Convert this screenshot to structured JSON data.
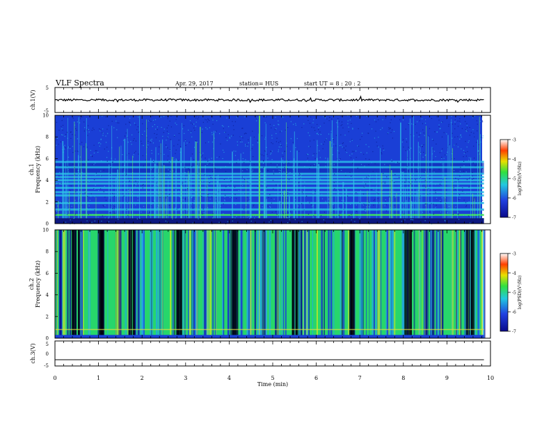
{
  "header": {
    "title": "VLF Spectra",
    "date": "Apr. 29, 2017",
    "station": "station= HUS",
    "start": "start  UT  =   8  : 20 : 2"
  },
  "chart_data": [
    {
      "type": "line",
      "panel": "ch1-waveform",
      "ylabel": "ch.1(V)",
      "ylim": [
        -5,
        5
      ],
      "yticks": [
        "5",
        "-5"
      ],
      "baseline": 0,
      "color": "#000000"
    },
    {
      "type": "heatmap",
      "panel": "ch1-spectrogram",
      "ylabel_top": "ch.1",
      "ylabel": "Frequency  (kHz)",
      "ylim": [
        0,
        10
      ],
      "yticks": [
        "0",
        "2",
        "4",
        "6",
        "8",
        "10"
      ],
      "background_color": "#1a3fd6",
      "horizontal_bands_khz": [
        0.4,
        0.8,
        1.3,
        1.9,
        2.6,
        2.9,
        3.3,
        3.7,
        4.0,
        4.3,
        4.6,
        5.2,
        5.7
      ],
      "colorbar": {
        "label": "log(PSD)(V²/Hz)",
        "range": [
          -7,
          -3
        ],
        "ticks": [
          "-3",
          "-4",
          "-5",
          "-6",
          "-7"
        ]
      }
    },
    {
      "type": "heatmap",
      "panel": "ch2-spectrogram",
      "ylabel_top": "ch.2",
      "ylabel": "Frequency  (kHz)",
      "ylim": [
        0,
        10
      ],
      "yticks": [
        "0",
        "2",
        "4",
        "6",
        "8",
        "10"
      ],
      "background_color": "#27d66b",
      "dark_bands_min": [
        0.45,
        1.05,
        1.75,
        2.8,
        4.1,
        5.5,
        6.8,
        8.1,
        9.5
      ],
      "colorbar": {
        "label": "log(PSD)(V²/Hz)",
        "range": [
          -7,
          -3
        ],
        "ticks": [
          "-3",
          "-4",
          "-5",
          "-6",
          "-7"
        ]
      }
    },
    {
      "type": "line",
      "panel": "ch3-waveform",
      "ylabel": "ch.3(V)",
      "ylim": [
        -5,
        5
      ],
      "yticks": [
        "5",
        "0",
        "-5"
      ],
      "baseline": -2.5,
      "color": "#000000"
    }
  ],
  "xaxis": {
    "label": "Time  (min)",
    "range": [
      0,
      10
    ],
    "ticks": [
      "0",
      "1",
      "2",
      "3",
      "4",
      "5",
      "6",
      "7",
      "8",
      "9",
      "10"
    ],
    "data_end_min": 9.85
  },
  "colorscale": [
    "#000000",
    "#0a0a8a",
    "#1a3fd6",
    "#22a8e6",
    "#27d66b",
    "#b8e62a",
    "#f2e200",
    "#ff8000",
    "#e00000",
    "#ffffff"
  ]
}
